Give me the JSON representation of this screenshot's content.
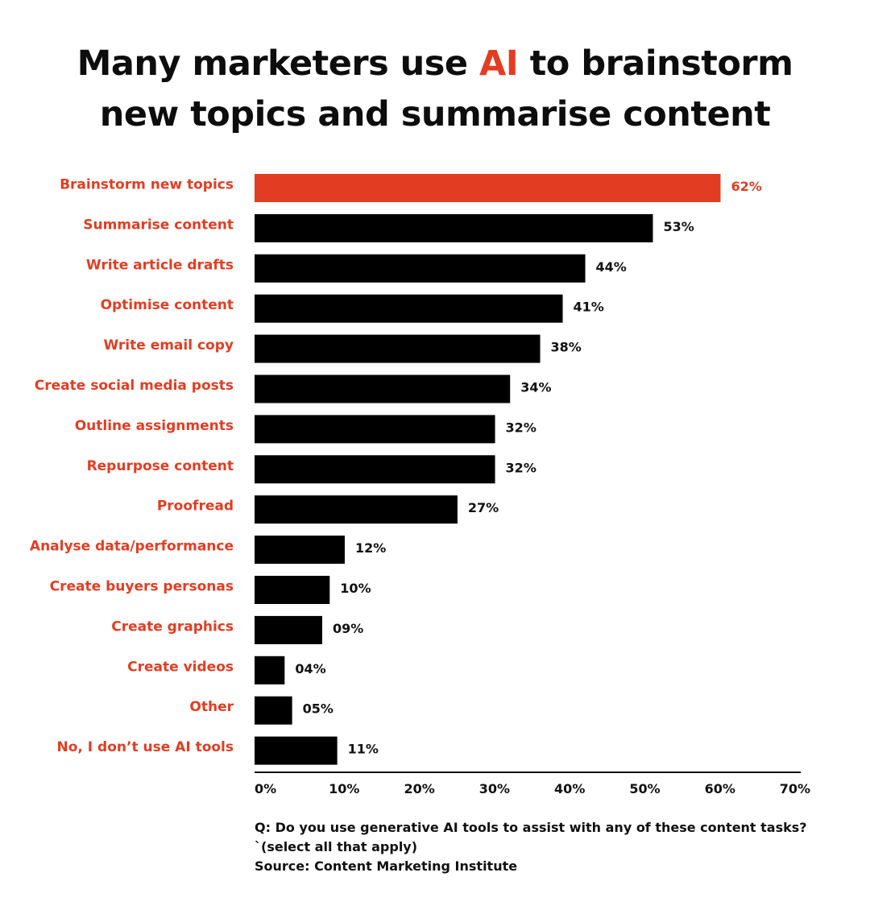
{
  "header": {
    "title_line1_pre": "Many marketers use ",
    "title_highlight": "AI",
    "title_line1_post": " to brainstorm",
    "title_line2": "new topics and summarise content"
  },
  "colors": {
    "accent": "#e23d22",
    "bar": "#000000",
    "label": "#e23d22",
    "value": "#111111",
    "title": "#0d0d0d"
  },
  "chart_data": {
    "type": "bar",
    "orientation": "horizontal",
    "categories": [
      "Brainstorm new topics",
      "Summarise content",
      "Write article drafts",
      "Optimise content",
      "Write email copy",
      "Create social media posts",
      "Outline assignments",
      "Repurpose content",
      "Proofread",
      "Analyse data/performance",
      "Create buyers personas",
      "Create graphics",
      "Create videos",
      "Other",
      "No, I don’t use AI tools"
    ],
    "values": [
      62,
      53,
      44,
      41,
      38,
      34,
      32,
      32,
      27,
      12,
      10,
      9,
      4,
      5,
      11
    ],
    "value_labels": [
      "62%",
      "53%",
      "44%",
      "41%",
      "38%",
      "34%",
      "32%",
      "32%",
      "27%",
      "12%",
      "10%",
      "09%",
      "04%",
      "05%",
      "11%"
    ],
    "highlight_index": 0,
    "xticks": [
      "0%",
      "10%",
      "20%",
      "30%",
      "40%",
      "50%",
      "60%",
      "70%"
    ],
    "xlim": [
      0,
      70
    ],
    "grid": false,
    "legend": "none"
  },
  "footer": {
    "question_line1": "Q: Do you use generative AI tools to assist with any of these content tasks?",
    "question_line2": "`(select all that apply)",
    "source": "Source: Content Marketing Institute"
  }
}
